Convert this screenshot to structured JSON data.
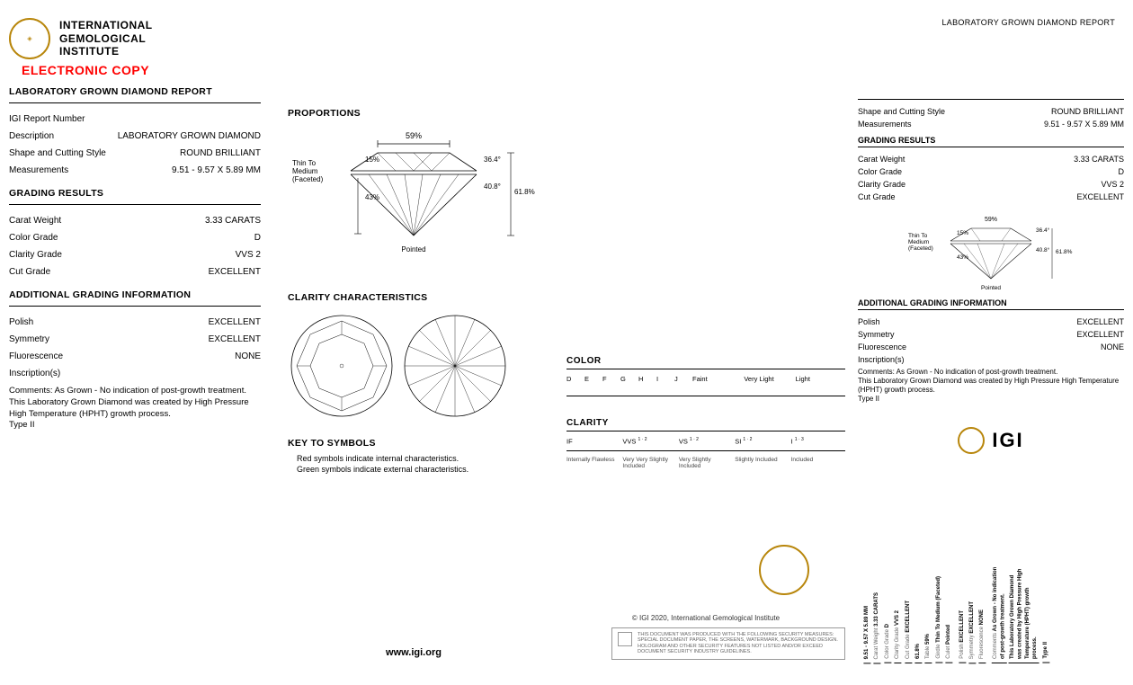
{
  "institute": {
    "line1": "INTERNATIONAL",
    "line2": "GEMOLOGICAL",
    "line3": "INSTITUTE",
    "ecopy": "ELECTRONIC COPY"
  },
  "report_title": "LABORATORY GROWN DIAMOND REPORT",
  "left": {
    "rows1": [
      {
        "lbl": "IGI Report Number",
        "val": ""
      },
      {
        "lbl": "Description",
        "val": "LABORATORY GROWN DIAMOND"
      },
      {
        "lbl": "Shape and Cutting Style",
        "val": "ROUND BRILLIANT"
      },
      {
        "lbl": "Measurements",
        "val": "9.51 - 9.57 X 5.89 MM"
      }
    ],
    "grading_title": "GRADING RESULTS",
    "rows2": [
      {
        "lbl": "Carat Weight",
        "val": "3.33 CARATS"
      },
      {
        "lbl": "Color Grade",
        "val": "D"
      },
      {
        "lbl": "Clarity Grade",
        "val": "VVS 2"
      },
      {
        "lbl": "Cut Grade",
        "val": "EXCELLENT"
      }
    ],
    "addl_title": "ADDITIONAL GRADING INFORMATION",
    "rows3": [
      {
        "lbl": "Polish",
        "val": "EXCELLENT"
      },
      {
        "lbl": "Symmetry",
        "val": "EXCELLENT"
      },
      {
        "lbl": "Fluorescence",
        "val": "NONE"
      }
    ],
    "inscriptions": "Inscription(s)",
    "comments": "Comments: As Grown - No indication of post-growth treatment.",
    "process": "This Laboratory Grown Diamond was created by High Pressure High Temperature (HPHT) growth process.",
    "type": "Type II"
  },
  "proportions": {
    "title": "PROPORTIONS",
    "table_pct": "59%",
    "crown_angle": "36.4°",
    "pavilion_angle": "40.8°",
    "depth_pct": "61.8%",
    "girdle": "Thin To Medium (Faceted)",
    "crown_pct": "15%",
    "pavilion_pct": "43%",
    "culet": "Pointed"
  },
  "clarity": {
    "title": "CLARITY CHARACTERISTICS",
    "key_title": "KEY TO SYMBOLS",
    "key1": "Red symbols indicate internal characteristics.",
    "key2": "Green symbols indicate external characteristics."
  },
  "scales": {
    "color_title": "COLOR",
    "color_letters": [
      "D",
      "E",
      "F",
      "G",
      "H",
      "I",
      "J"
    ],
    "color_groups": [
      "Faint",
      "Very Light",
      "Light"
    ],
    "clarity_title": "CLARITY",
    "clarity_top": [
      {
        "g": "IF",
        "s": ""
      },
      {
        "g": "VVS",
        "s": "1 · 2"
      },
      {
        "g": "VS",
        "s": "1 · 2"
      },
      {
        "g": "SI",
        "s": "1 · 2"
      },
      {
        "g": "I",
        "s": "1 · 3"
      }
    ],
    "clarity_sub": [
      "Internally Flawless",
      "Very Very Slightly Included",
      "Very Slightly Included",
      "Slightly Included",
      "Included"
    ]
  },
  "footer": {
    "url": "www.igi.org",
    "copyright": "© IGI 2020, International Gemological Institute",
    "disclaimer": "THIS DOCUMENT WAS PRODUCED WITH THE FOLLOWING SECURITY MEASURES: SPECIAL DOCUMENT PAPER, THE SCREENS, WATERMARK, BACKGROUND DESIGN. HOLOGRAM AND OTHER SECURITY FEATURES NOT LISTED AND/OR EXCEED DOCUMENT SECURITY INDUSTRY GUIDELINES."
  },
  "right": {
    "top_title": "LABORATORY GROWN DIAMOND REPORT",
    "rows1": [
      {
        "lbl": "Shape and Cutting Style",
        "val": "ROUND BRILLIANT"
      },
      {
        "lbl": "Measurements",
        "val": "9.51 - 9.57 X 5.89 MM"
      }
    ],
    "grading_title": "GRADING RESULTS",
    "rows2": [
      {
        "lbl": "Carat Weight",
        "val": "3.33 CARATS"
      },
      {
        "lbl": "Color Grade",
        "val": "D"
      },
      {
        "lbl": "Clarity Grade",
        "val": "VVS 2"
      },
      {
        "lbl": "Cut Grade",
        "val": "EXCELLENT"
      }
    ],
    "addl_title": "ADDITIONAL GRADING INFORMATION",
    "rows3": [
      {
        "lbl": "Polish",
        "val": "EXCELLENT"
      },
      {
        "lbl": "Symmetry",
        "val": "EXCELLENT"
      },
      {
        "lbl": "Fluorescence",
        "val": "NONE"
      }
    ],
    "inscriptions": "Inscription(s)",
    "comments": "Comments: As Grown - No indication of post-growth treatment.",
    "process": "This Laboratory Grown Diamond was created by High Pressure High Temperature (HPHT) growth process.",
    "type": "Type II",
    "igi": "IGI"
  },
  "vert": [
    {
      "l": "",
      "v": "9.51 - 9.57 X 5.89 MM"
    },
    {
      "l": "Carat Weight",
      "v": "3.33 CARATS"
    },
    {
      "l": "Color Grade",
      "v": "D"
    },
    {
      "l": "Clarity Grade",
      "v": "VVS 2"
    },
    {
      "l": "Cut Grade",
      "v": "EXCELLENT"
    },
    {
      "l": "",
      "v": "61.8%"
    },
    {
      "l": "Table",
      "v": "59%"
    },
    {
      "l": "Girdle",
      "v": "Thin To Medium (Faceted)"
    },
    {
      "l": "Culet",
      "v": "Pointed"
    },
    {
      "l": "",
      "v": ""
    },
    {
      "l": "Polish",
      "v": "EXCELLENT"
    },
    {
      "l": "Symmetry",
      "v": "EXCELLENT"
    },
    {
      "l": "Fluorescence",
      "v": "NONE"
    },
    {
      "l": "",
      "v": ""
    },
    {
      "l": "Comments",
      "v": "As Grown - No indication of post-growth treatment."
    },
    {
      "l": "",
      "v": "This Laboratory Grown Diamond was created by High Pressure High Temperature (HPHT) growth process."
    },
    {
      "l": "",
      "v": "Type II"
    }
  ]
}
